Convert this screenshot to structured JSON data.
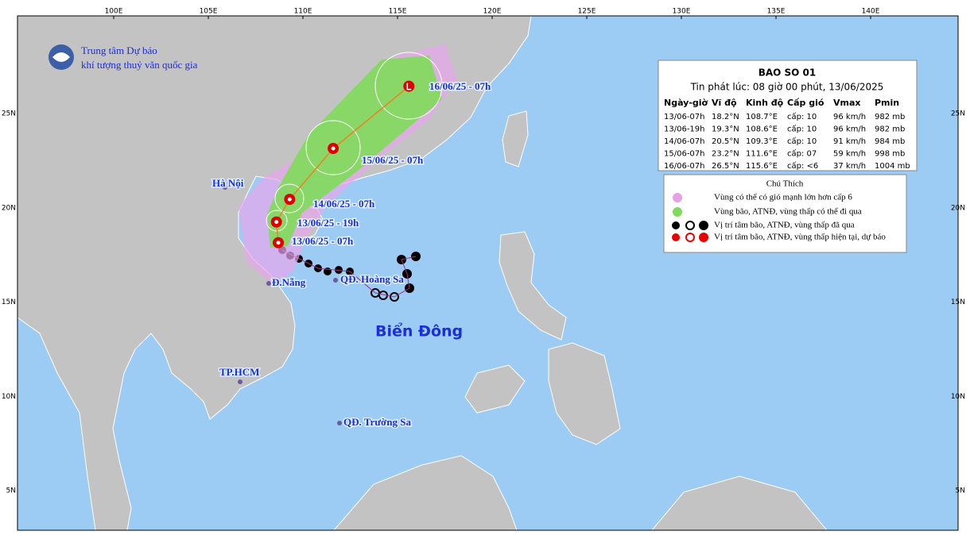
{
  "map": {
    "lon_labels": [
      "100E",
      "105E",
      "110E",
      "115E",
      "120E",
      "125E",
      "130E",
      "135E",
      "140E"
    ],
    "lat_labels": [
      "25N",
      "20N",
      "15N",
      "10N",
      "5N"
    ],
    "org": [
      "Trung tâm Dự báo",
      "khí tượng thuỷ văn quốc gia"
    ],
    "places": [
      "Hà Nội",
      "Đ.Nẵng",
      "QĐ. Hoàng Sa",
      "Biển Đông",
      "TP.HCM",
      "QĐ. Trường Sa"
    ],
    "forecast_labels": [
      "16/06/25 - 07h",
      "15/06/25 - 07h",
      "14/06/25 - 07h",
      "13/06/25 - 19h",
      "13/06/25 - 07h"
    ]
  },
  "info": {
    "title": "BAO SO 01",
    "subtitle": "Tin phát lúc: 08 giờ 00 phút, 13/06/2025",
    "headers": [
      "Ngày-giờ",
      "Vĩ độ",
      "Kinh độ",
      "Cấp gió",
      "Vmax",
      "Pmin"
    ],
    "rows": [
      [
        "13/06-07h",
        "18.2°N",
        "108.7°E",
        "cấp: 10",
        "96 km/h",
        "982 mb"
      ],
      [
        "13/06-19h",
        "19.3°N",
        "108.6°E",
        "cấp: 10",
        "96 km/h",
        "982 mb"
      ],
      [
        "14/06-07h",
        "20.5°N",
        "109.3°E",
        "cấp: 10",
        "91 km/h",
        "984 mb"
      ],
      [
        "15/06-07h",
        "23.2°N",
        "111.6°E",
        "cấp: 07",
        "59 km/h",
        "998 mb"
      ],
      [
        "16/06-07h",
        "26.5°N",
        "115.6°E",
        "cấp: <6",
        "37 km/h",
        "1004 mb"
      ]
    ]
  },
  "legend": {
    "title": "Chú Thích",
    "items": [
      "Vùng có thể có gió mạnh lớn hơn cấp 6",
      "Vùng bão, ATNĐ, vùng thấp có thể đi qua",
      "Vị trí tâm bão, ATNĐ, vùng thấp đã qua",
      "Vị trí tâm bão, ATNĐ, vùng thấp hiện tại, dự báo"
    ]
  }
}
